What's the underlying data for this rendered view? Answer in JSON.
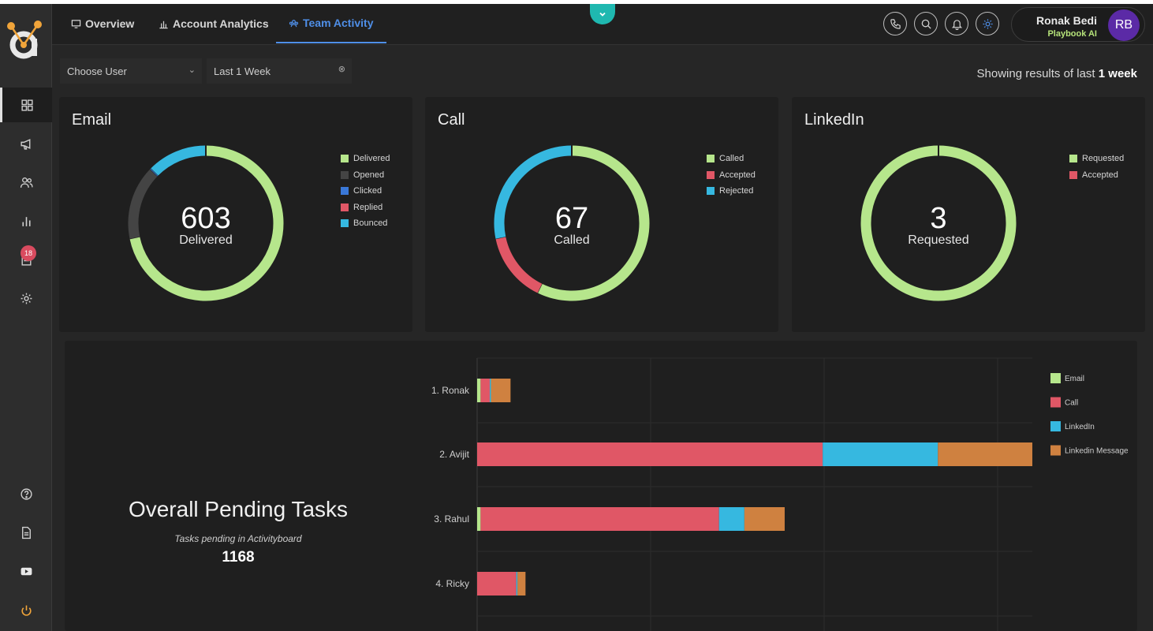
{
  "app": {
    "logo_icon": "playbook-logo-icon"
  },
  "colors": {
    "green": "#b6e68c",
    "gray": "#444444",
    "blue": "#3a78d8",
    "red": "#e05766",
    "cyan": "#36b8e0",
    "orange": "#cf8140",
    "accent": "#4f8fe8",
    "teal": "#1fb8b0"
  },
  "sidebar": {
    "items": [
      {
        "icon": "grid-icon"
      },
      {
        "icon": "megaphone-icon"
      },
      {
        "icon": "users-icon"
      },
      {
        "icon": "bar-chart-icon"
      },
      {
        "icon": "task-list-icon",
        "badge": "18"
      },
      {
        "icon": "gear-icon"
      },
      {
        "icon": "help-icon"
      },
      {
        "icon": "document-icon"
      },
      {
        "icon": "youtube-icon"
      },
      {
        "icon": "power-icon"
      }
    ]
  },
  "header": {
    "tabs": [
      {
        "label": "Overview",
        "icon": "monitor-icon"
      },
      {
        "label": "Account Analytics",
        "icon": "bar-chart-icon"
      },
      {
        "label": "Team Activity",
        "icon": "team-icon"
      }
    ],
    "user": {
      "name": "Ronak Bedi",
      "org": "Playbook AI",
      "initials": "RB"
    }
  },
  "filters": {
    "user_select": "Choose User",
    "period_select": "Last 1 Week",
    "showing_prefix": "Showing results of last",
    "showing_value": "1 week"
  },
  "cards": {
    "email": {
      "title": "Email",
      "center_value": "603",
      "center_label": "Delivered",
      "legend": [
        "Delivered",
        "Opened",
        "Clicked",
        "Replied",
        "Bounced"
      ]
    },
    "call": {
      "title": "Call",
      "center_value": "67",
      "center_label": "Called",
      "legend": [
        "Called",
        "Accepted",
        "Rejected"
      ]
    },
    "linkedin": {
      "title": "LinkedIn",
      "center_value": "3",
      "center_label": "Requested",
      "legend": [
        "Requested",
        "Accepted"
      ]
    }
  },
  "pending": {
    "title": "Overall Pending Tasks",
    "subtitle": "Tasks pending in Activityboard",
    "count": "1168"
  },
  "chart_data": [
    {
      "type": "pie",
      "title": "Email",
      "categories": [
        "Delivered",
        "Opened",
        "Clicked",
        "Replied",
        "Bounced"
      ],
      "values": [
        603,
        130,
        2,
        0,
        105
      ],
      "center": "603 Delivered"
    },
    {
      "type": "pie",
      "title": "Call",
      "categories": [
        "Called",
        "Accepted",
        "Rejected"
      ],
      "values": [
        67,
        17,
        33
      ],
      "center": "67 Called"
    },
    {
      "type": "pie",
      "title": "LinkedIn",
      "categories": [
        "Requested",
        "Accepted"
      ],
      "values": [
        3,
        0
      ],
      "center": "3 Requested"
    },
    {
      "type": "bar",
      "orientation": "horizontal",
      "stacked": true,
      "categories": [
        "1. Ronak",
        "2. Avijit",
        "3. Rahul",
        "4. Ricky"
      ],
      "series": [
        {
          "name": "Email",
          "values": [
            3,
            0,
            3,
            0
          ]
        },
        {
          "name": "Call",
          "values": [
            8,
            300,
            207,
            34
          ]
        },
        {
          "name": "LinkedIn",
          "values": [
            1,
            100,
            22,
            1
          ]
        },
        {
          "name": "Linkedin Message",
          "values": [
            17,
            82,
            35,
            7
          ]
        }
      ],
      "xlim": [
        0,
        482
      ],
      "legend_position": "right",
      "grid": true
    }
  ]
}
